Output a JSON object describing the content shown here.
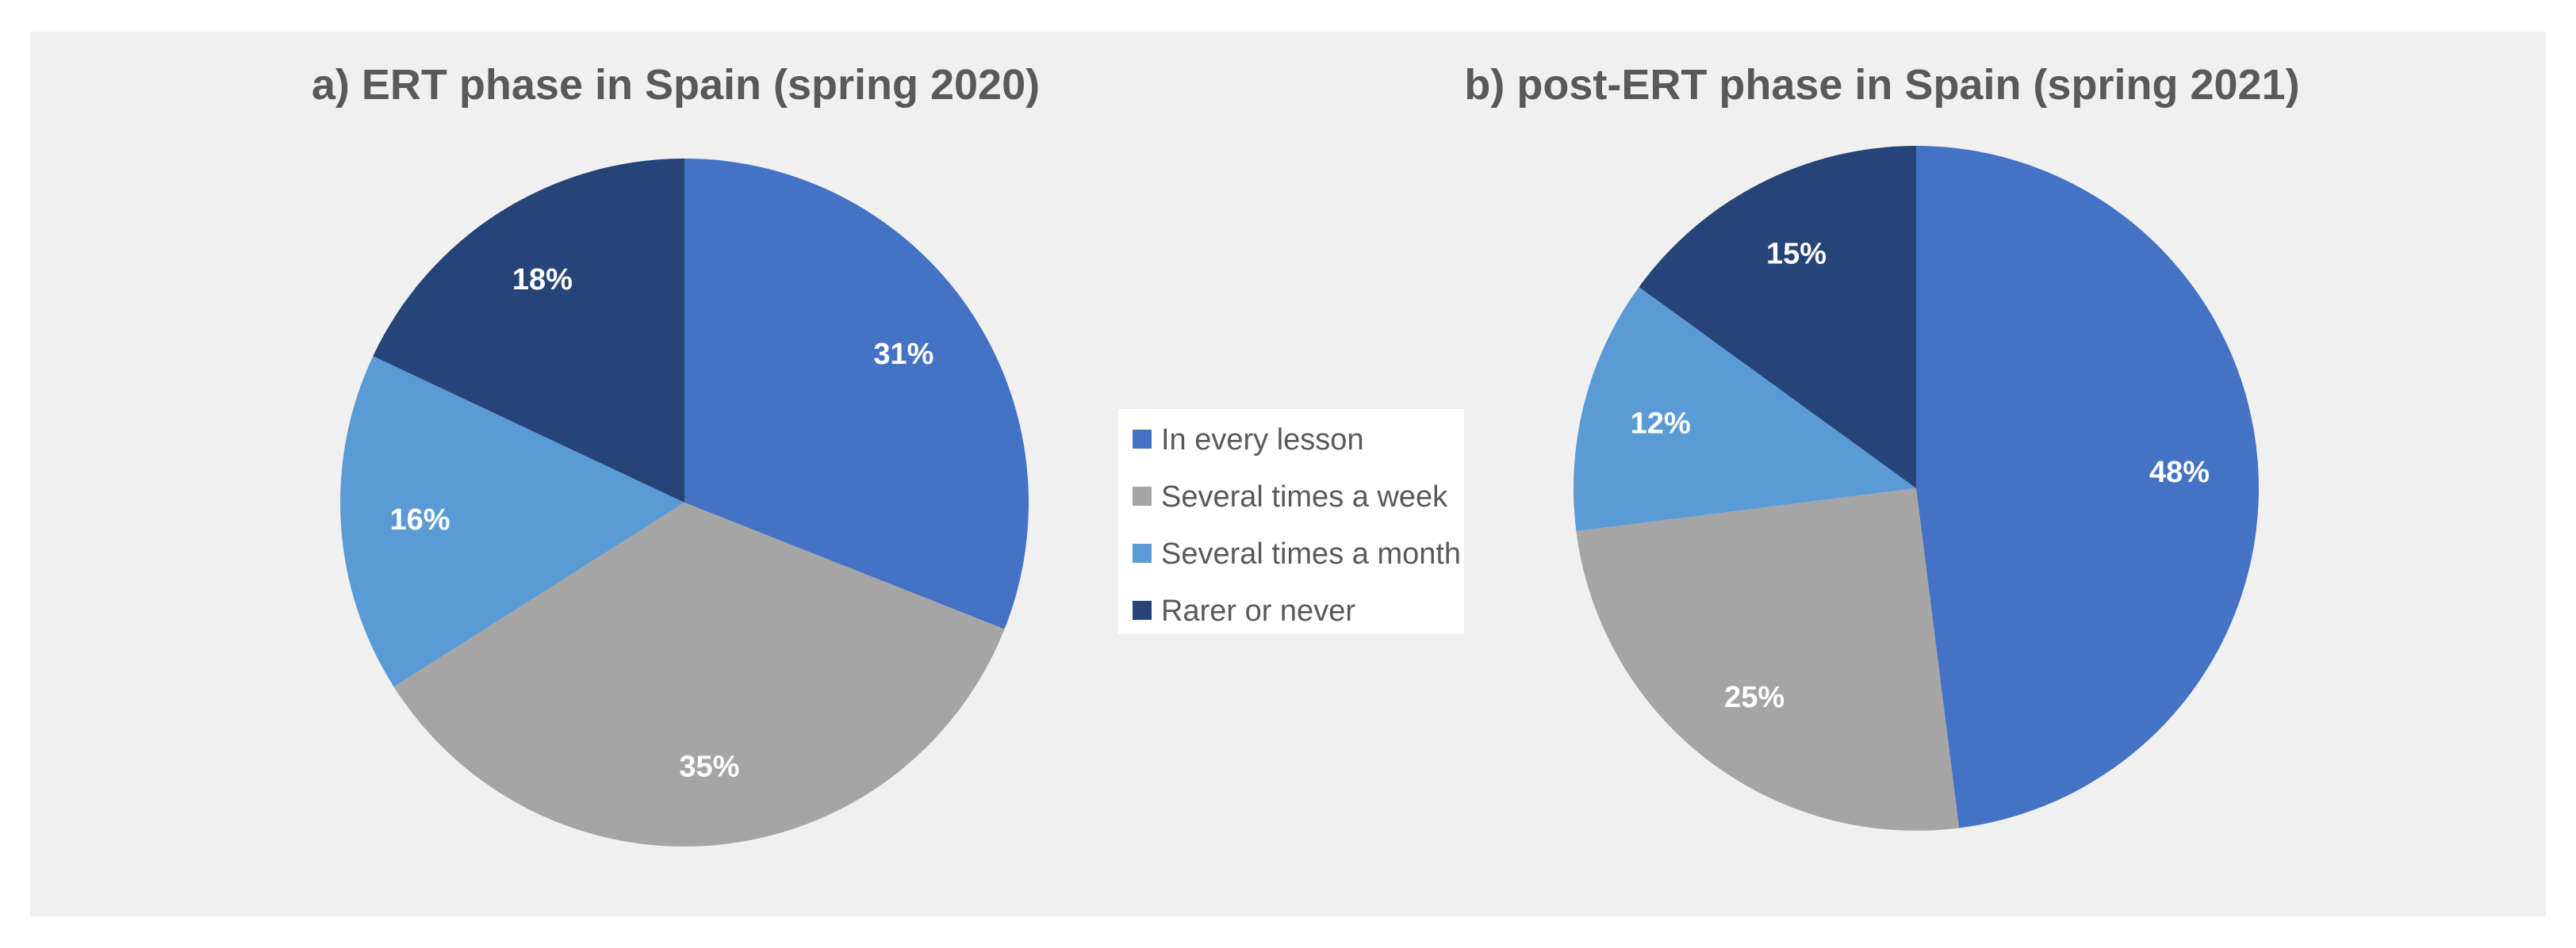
{
  "chart_data": [
    {
      "type": "pie",
      "title": "a) ERT phase in Spain (spring 2020)",
      "categories": [
        "In every lesson",
        "Several times a week",
        "Several times a month",
        "Rarer or never"
      ],
      "values": [
        31,
        35,
        16,
        18
      ],
      "data_labels": [
        "31%",
        "35%",
        "16%",
        "18%"
      ]
    },
    {
      "type": "pie",
      "title": "b) post-ERT phase in Spain (spring 2021)",
      "categories": [
        "In every lesson",
        "Several times a week",
        "Several times a month",
        "Rarer or never"
      ],
      "values": [
        48,
        25,
        12,
        15
      ],
      "data_labels": [
        "48%",
        "25%",
        "12%",
        "15%"
      ]
    }
  ],
  "legend": {
    "placement": "center",
    "items": [
      {
        "label": "In every lesson",
        "color": "#4472c4"
      },
      {
        "label": "Several times a week",
        "color": "#a5a5a5"
      },
      {
        "label": "Several times a month",
        "color": "#5b9bd5"
      },
      {
        "label": "Rarer or never",
        "color": "#264478"
      }
    ]
  },
  "colors": {
    "background": "#f0f0f0",
    "title": "#595959",
    "slice_label": "#ffffff"
  }
}
